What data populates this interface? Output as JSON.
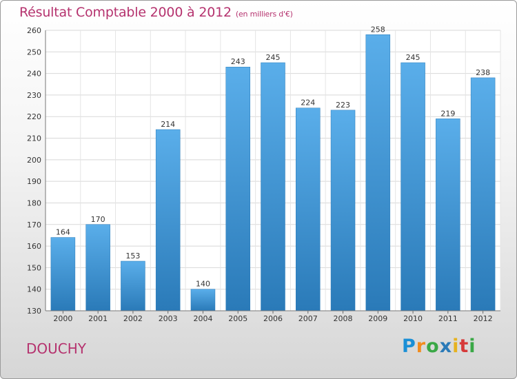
{
  "chart_data": {
    "type": "bar",
    "title": "Résultat Comptable 2000 à 2012",
    "subtitle": "(en milliers d'€)",
    "categories": [
      "2000",
      "2001",
      "2002",
      "2003",
      "2004",
      "2005",
      "2006",
      "2007",
      "2008",
      "2009",
      "2010",
      "2011",
      "2012"
    ],
    "values": [
      164,
      170,
      153,
      214,
      140,
      243,
      245,
      224,
      223,
      258,
      245,
      219,
      238
    ],
    "ylim": [
      130,
      260
    ],
    "yticks": [
      130,
      140,
      150,
      160,
      170,
      180,
      190,
      200,
      210,
      220,
      230,
      240,
      250,
      260
    ],
    "grid": true,
    "bar_color_top": "#5aaeea",
    "bar_color_bottom": "#2a7ab8"
  },
  "commune": "DOUCHY",
  "logo": {
    "letters": [
      "P",
      "r",
      "o",
      "x",
      "i",
      "t",
      "i"
    ],
    "colors": [
      "#1a8fd6",
      "#f28c1e",
      "#3aa846",
      "#2a7ab8",
      "#e6b21f",
      "#d63a3a",
      "#3aa846"
    ]
  }
}
